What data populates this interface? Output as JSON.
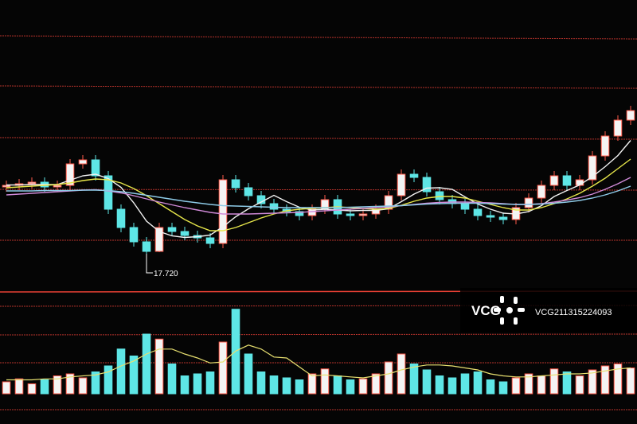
{
  "chart_data": {
    "type": "candlestick",
    "ylim": [
      16.9,
      24.1
    ],
    "up_color": "#ff5a4a",
    "down_color": "#5ee6e6",
    "open": [
      19.4,
      19.44,
      19.48,
      19.52,
      19.4,
      19.44,
      19.98,
      20.08,
      19.68,
      18.84,
      18.38,
      18.02,
      17.78,
      18.38,
      18.28,
      18.18,
      18.12,
      17.98,
      19.58,
      19.38,
      19.18,
      18.98,
      18.84,
      18.78,
      18.68,
      18.84,
      19.08,
      18.72,
      18.68,
      18.72,
      18.84,
      19.18,
      19.72,
      19.64,
      19.28,
      19.08,
      18.98,
      18.84,
      18.68,
      18.64,
      18.58,
      18.88,
      19.12,
      19.44,
      19.68,
      19.44,
      19.58,
      20.18,
      20.68,
      21.08
    ],
    "high": [
      19.56,
      19.6,
      19.64,
      19.64,
      19.56,
      20.1,
      20.2,
      20.2,
      19.8,
      18.96,
      18.5,
      18.14,
      18.5,
      18.5,
      18.4,
      18.3,
      18.24,
      19.7,
      19.7,
      19.5,
      19.3,
      19.1,
      18.96,
      18.9,
      18.96,
      19.2,
      19.2,
      18.84,
      18.84,
      18.96,
      19.3,
      19.84,
      19.84,
      19.76,
      19.4,
      19.2,
      19.1,
      18.96,
      18.8,
      18.76,
      19.0,
      19.24,
      19.56,
      19.8,
      19.8,
      19.7,
      20.3,
      20.8,
      21.2,
      21.44
    ],
    "low": [
      19.28,
      19.32,
      19.36,
      19.28,
      19.28,
      19.32,
      19.86,
      19.56,
      18.72,
      18.26,
      17.9,
      17.72,
      17.76,
      18.16,
      18.06,
      18.0,
      17.86,
      17.86,
      19.26,
      19.06,
      18.86,
      18.72,
      18.66,
      18.56,
      18.56,
      18.72,
      18.6,
      18.56,
      18.56,
      18.6,
      18.72,
      19.06,
      19.52,
      19.16,
      18.96,
      18.86,
      18.72,
      18.56,
      18.52,
      18.46,
      18.46,
      18.76,
      19.0,
      19.32,
      19.32,
      19.32,
      19.46,
      20.06,
      20.56,
      20.96
    ],
    "close": [
      19.44,
      19.48,
      19.52,
      19.4,
      19.44,
      19.98,
      20.08,
      19.68,
      18.84,
      18.38,
      18.02,
      17.78,
      18.38,
      18.28,
      18.18,
      18.12,
      17.98,
      19.58,
      19.38,
      19.18,
      18.98,
      18.84,
      18.78,
      18.68,
      18.84,
      19.08,
      18.72,
      18.68,
      18.72,
      18.84,
      19.18,
      19.72,
      19.64,
      19.28,
      19.08,
      18.98,
      18.84,
      18.68,
      18.64,
      18.58,
      18.88,
      19.12,
      19.44,
      19.68,
      19.44,
      19.58,
      20.18,
      20.68,
      21.08,
      21.32
    ],
    "ma_series": [
      {
        "color": "#f2f2f2",
        "values": [
          19.45,
          19.45,
          19.46,
          19.46,
          19.46,
          19.57,
          19.68,
          19.72,
          19.61,
          19.39,
          19.0,
          18.54,
          18.28,
          18.17,
          18.13,
          18.15,
          18.19,
          18.4,
          18.65,
          18.85,
          19.02,
          19.19,
          19.03,
          18.89,
          18.82,
          18.84,
          18.82,
          18.8,
          18.81,
          18.81,
          18.85,
          19.03,
          19.22,
          19.37,
          19.38,
          19.34,
          19.15,
          18.97,
          18.84,
          18.74,
          18.72,
          18.78,
          18.93,
          19.16,
          19.31,
          19.45,
          19.66,
          19.91,
          20.19,
          20.57
        ]
      },
      {
        "color": "#e6e64a",
        "values": [
          19.38,
          19.4,
          19.42,
          19.44,
          19.46,
          19.5,
          19.56,
          19.6,
          19.58,
          19.5,
          19.36,
          19.18,
          18.98,
          18.78,
          18.58,
          18.42,
          18.3,
          18.3,
          18.38,
          18.5,
          18.62,
          18.72,
          18.8,
          18.84,
          18.86,
          18.88,
          18.9,
          18.88,
          18.86,
          18.84,
          18.86,
          18.94,
          19.04,
          19.12,
          19.16,
          19.16,
          19.12,
          19.04,
          18.96,
          18.88,
          18.82,
          18.82,
          18.88,
          18.98,
          19.1,
          19.24,
          19.42,
          19.62,
          19.86,
          20.1
        ]
      },
      {
        "color": "#d08ad8",
        "values": [
          19.2,
          19.22,
          19.24,
          19.26,
          19.28,
          19.3,
          19.32,
          19.33,
          19.3,
          19.25,
          19.18,
          19.1,
          19.02,
          18.95,
          18.88,
          18.82,
          18.76,
          18.72,
          18.72,
          18.72,
          18.73,
          18.74,
          18.75,
          18.76,
          18.78,
          18.8,
          18.82,
          18.84,
          18.86,
          18.88,
          18.9,
          18.93,
          18.96,
          18.99,
          19.01,
          19.02,
          19.02,
          19.01,
          19.0,
          18.98,
          18.96,
          18.96,
          18.98,
          19.02,
          19.07,
          19.13,
          19.22,
          19.34,
          19.48,
          19.64
        ]
      },
      {
        "color": "#8ecbe8",
        "values": [
          19.3,
          19.3,
          19.3,
          19.31,
          19.31,
          19.31,
          19.32,
          19.32,
          19.31,
          19.28,
          19.24,
          19.19,
          19.14,
          19.09,
          19.04,
          19.0,
          18.96,
          18.93,
          18.92,
          18.91,
          18.9,
          18.89,
          18.88,
          18.88,
          18.88,
          18.88,
          18.88,
          18.89,
          18.9,
          18.91,
          18.92,
          18.93,
          18.95,
          18.97,
          18.98,
          18.99,
          18.99,
          18.99,
          18.98,
          18.97,
          18.96,
          18.96,
          18.97,
          18.99,
          19.02,
          19.06,
          19.12,
          19.2,
          19.3,
          19.42
        ]
      }
    ],
    "low_marker": {
      "value": 17.72,
      "label": "17.720"
    },
    "volume": {
      "ylim": [
        0,
        100
      ],
      "values": [
        12,
        15,
        10,
        14,
        18,
        20,
        16,
        22,
        28,
        45,
        38,
        60,
        55,
        30,
        18,
        20,
        22,
        52,
        85,
        40,
        22,
        18,
        16,
        14,
        20,
        25,
        18,
        14,
        15,
        20,
        32,
        40,
        30,
        24,
        18,
        16,
        20,
        22,
        14,
        12,
        16,
        20,
        18,
        25,
        22,
        18,
        24,
        28,
        30,
        26
      ],
      "ma": {
        "color": "#e8e070",
        "values": [
          14,
          14,
          14,
          15,
          15,
          17,
          18,
          19,
          22,
          28,
          33,
          40,
          45,
          45,
          40,
          36,
          31,
          32,
          43,
          49,
          45,
          37,
          36,
          27,
          18,
          19,
          18,
          17,
          16,
          18,
          20,
          24,
          27,
          29,
          29,
          28,
          26,
          24,
          20,
          18,
          17,
          17,
          18,
          19,
          20,
          20,
          21,
          23,
          25,
          26
        ]
      }
    },
    "watermark": {
      "logo": "VCG",
      "id": "VCG211315224093"
    }
  }
}
